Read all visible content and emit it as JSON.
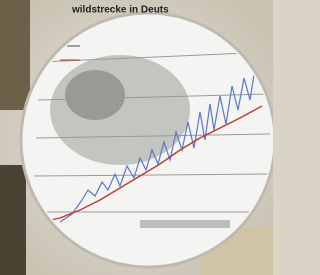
{
  "image": {
    "title_fragment": "wildstrecke in Deuts"
  }
}
